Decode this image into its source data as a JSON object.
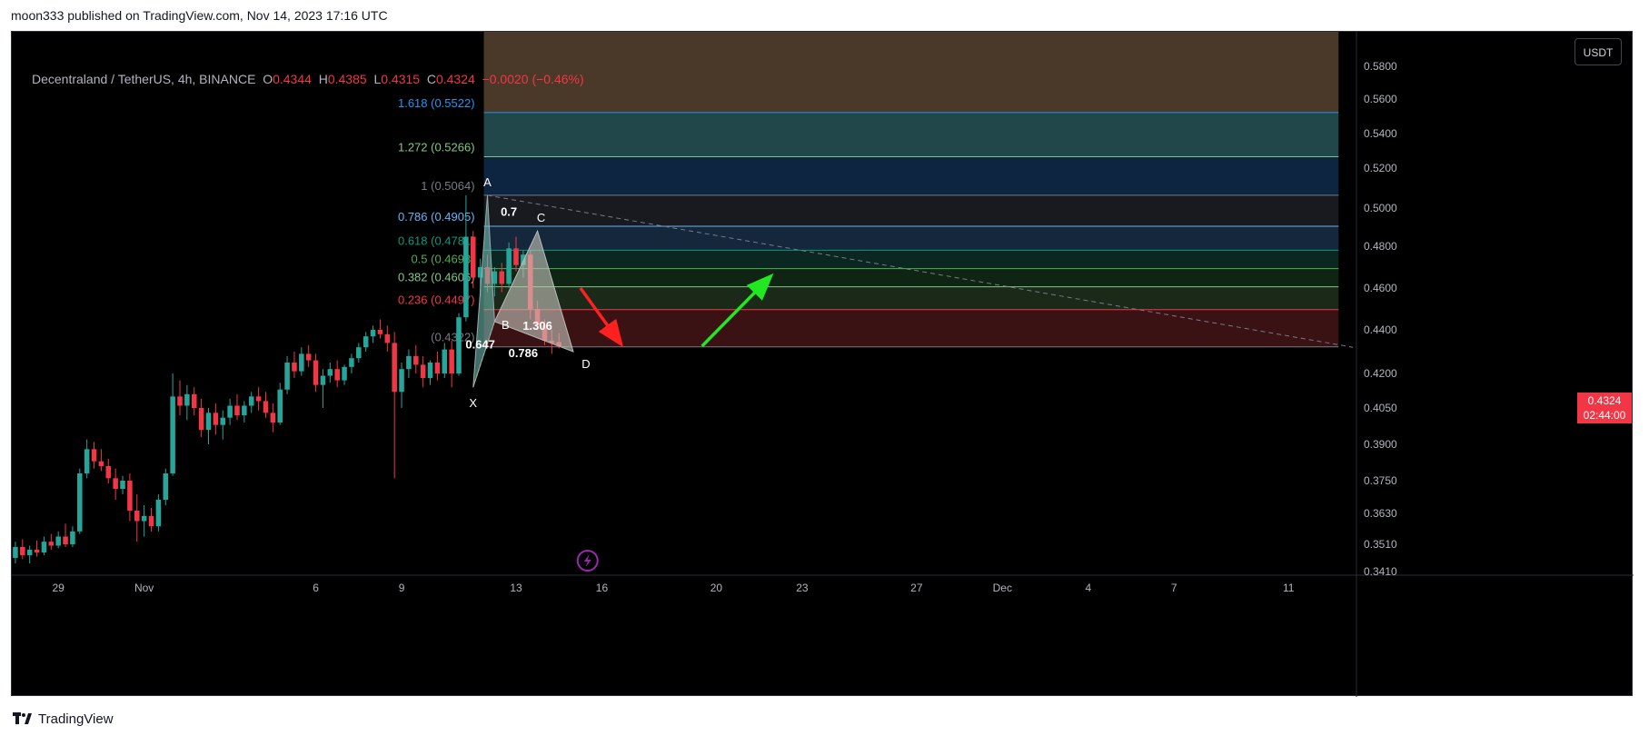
{
  "header": {
    "published": "moon333 published on TradingView.com, Nov 14, 2023 17:16 UTC"
  },
  "legend": {
    "symbol": "Decentraland / TetherUS, 4h, BINANCE",
    "o_label": "O",
    "o": "0.4344",
    "h_label": "H",
    "h": "0.4385",
    "l_label": "L",
    "l": "0.4315",
    "c_label": "C",
    "c": "0.4324",
    "change": "−0.0020 (−0.46%)"
  },
  "currency_button": "USDT",
  "last_price": {
    "value": "0.4324",
    "countdown": "02:44:00"
  },
  "footer": {
    "brand": "TradingView"
  },
  "colors": {
    "up": "#26a69a",
    "down": "#f23645",
    "background": "#000000",
    "axis_text": "#b2b5be"
  },
  "chart_data": {
    "type": "candlestick",
    "title": "",
    "xlabel": "",
    "ylabel": "",
    "y_axis_ticks": [
      "0.5800",
      "0.5600",
      "0.5400",
      "0.5200",
      "0.5000",
      "0.4800",
      "0.4600",
      "0.4400",
      "0.4200",
      "0.4050",
      "0.3900",
      "0.3750",
      "0.3630",
      "0.3510",
      "0.3410"
    ],
    "y_axis_values": [
      0.58,
      0.56,
      0.54,
      0.52,
      0.5,
      0.48,
      0.46,
      0.44,
      0.42,
      0.405,
      0.39,
      0.375,
      0.363,
      0.351,
      0.341
    ],
    "x_axis_ticks": [
      {
        "label": "29",
        "bar": 6
      },
      {
        "label": "Nov",
        "bar": 18
      },
      {
        "label": "6",
        "bar": 42
      },
      {
        "label": "9",
        "bar": 54
      },
      {
        "label": "13",
        "bar": 70
      },
      {
        "label": "16",
        "bar": 82
      },
      {
        "label": "20",
        "bar": 98
      },
      {
        "label": "23",
        "bar": 110
      },
      {
        "label": "27",
        "bar": 126
      },
      {
        "label": "Dec",
        "bar": 138
      },
      {
        "label": "4",
        "bar": 150
      },
      {
        "label": "7",
        "bar": 162
      },
      {
        "label": "11",
        "bar": 178
      }
    ],
    "bars_total": 188,
    "candles": [
      {
        "o": 0.346,
        "h": 0.352,
        "l": 0.344,
        "c": 0.35
      },
      {
        "o": 0.35,
        "h": 0.353,
        "l": 0.3455,
        "c": 0.347
      },
      {
        "o": 0.347,
        "h": 0.3505,
        "l": 0.344,
        "c": 0.349
      },
      {
        "o": 0.349,
        "h": 0.3525,
        "l": 0.3465,
        "c": 0.348
      },
      {
        "o": 0.348,
        "h": 0.354,
        "l": 0.347,
        "c": 0.352
      },
      {
        "o": 0.352,
        "h": 0.355,
        "l": 0.349,
        "c": 0.3505
      },
      {
        "o": 0.3505,
        "h": 0.356,
        "l": 0.3495,
        "c": 0.354
      },
      {
        "o": 0.354,
        "h": 0.359,
        "l": 0.35,
        "c": 0.351
      },
      {
        "o": 0.351,
        "h": 0.358,
        "l": 0.35,
        "c": 0.356
      },
      {
        "o": 0.356,
        "h": 0.38,
        "l": 0.355,
        "c": 0.378
      },
      {
        "o": 0.378,
        "h": 0.392,
        "l": 0.376,
        "c": 0.388
      },
      {
        "o": 0.388,
        "h": 0.391,
        "l": 0.38,
        "c": 0.383
      },
      {
        "o": 0.383,
        "h": 0.388,
        "l": 0.379,
        "c": 0.381
      },
      {
        "o": 0.381,
        "h": 0.384,
        "l": 0.374,
        "c": 0.376
      },
      {
        "o": 0.376,
        "h": 0.38,
        "l": 0.368,
        "c": 0.372
      },
      {
        "o": 0.372,
        "h": 0.377,
        "l": 0.37,
        "c": 0.375
      },
      {
        "o": 0.375,
        "h": 0.378,
        "l": 0.36,
        "c": 0.364
      },
      {
        "o": 0.364,
        "h": 0.37,
        "l": 0.352,
        "c": 0.36
      },
      {
        "o": 0.36,
        "h": 0.366,
        "l": 0.354,
        "c": 0.362
      },
      {
        "o": 0.362,
        "h": 0.365,
        "l": 0.356,
        "c": 0.358
      },
      {
        "o": 0.358,
        "h": 0.37,
        "l": 0.356,
        "c": 0.368
      },
      {
        "o": 0.368,
        "h": 0.38,
        "l": 0.366,
        "c": 0.378
      },
      {
        "o": 0.378,
        "h": 0.42,
        "l": 0.377,
        "c": 0.41
      },
      {
        "o": 0.41,
        "h": 0.417,
        "l": 0.402,
        "c": 0.406
      },
      {
        "o": 0.406,
        "h": 0.415,
        "l": 0.4,
        "c": 0.411
      },
      {
        "o": 0.411,
        "h": 0.414,
        "l": 0.402,
        "c": 0.405
      },
      {
        "o": 0.405,
        "h": 0.409,
        "l": 0.393,
        "c": 0.396
      },
      {
        "o": 0.396,
        "h": 0.405,
        "l": 0.39,
        "c": 0.403
      },
      {
        "o": 0.403,
        "h": 0.407,
        "l": 0.394,
        "c": 0.398
      },
      {
        "o": 0.398,
        "h": 0.404,
        "l": 0.392,
        "c": 0.401
      },
      {
        "o": 0.401,
        "h": 0.409,
        "l": 0.398,
        "c": 0.406
      },
      {
        "o": 0.406,
        "h": 0.411,
        "l": 0.4,
        "c": 0.402
      },
      {
        "o": 0.402,
        "h": 0.408,
        "l": 0.399,
        "c": 0.406
      },
      {
        "o": 0.406,
        "h": 0.412,
        "l": 0.403,
        "c": 0.41
      },
      {
        "o": 0.41,
        "h": 0.414,
        "l": 0.404,
        "c": 0.408
      },
      {
        "o": 0.408,
        "h": 0.412,
        "l": 0.401,
        "c": 0.403
      },
      {
        "o": 0.403,
        "h": 0.407,
        "l": 0.395,
        "c": 0.399
      },
      {
        "o": 0.399,
        "h": 0.416,
        "l": 0.398,
        "c": 0.413
      },
      {
        "o": 0.413,
        "h": 0.428,
        "l": 0.411,
        "c": 0.425
      },
      {
        "o": 0.425,
        "h": 0.43,
        "l": 0.418,
        "c": 0.421
      },
      {
        "o": 0.421,
        "h": 0.432,
        "l": 0.419,
        "c": 0.429
      },
      {
        "o": 0.429,
        "h": 0.433,
        "l": 0.423,
        "c": 0.426
      },
      {
        "o": 0.426,
        "h": 0.429,
        "l": 0.412,
        "c": 0.415
      },
      {
        "o": 0.415,
        "h": 0.422,
        "l": 0.405,
        "c": 0.419
      },
      {
        "o": 0.419,
        "h": 0.425,
        "l": 0.416,
        "c": 0.422
      },
      {
        "o": 0.422,
        "h": 0.426,
        "l": 0.414,
        "c": 0.417
      },
      {
        "o": 0.417,
        "h": 0.424,
        "l": 0.415,
        "c": 0.423
      },
      {
        "o": 0.423,
        "h": 0.429,
        "l": 0.42,
        "c": 0.427
      },
      {
        "o": 0.427,
        "h": 0.434,
        "l": 0.425,
        "c": 0.432
      },
      {
        "o": 0.432,
        "h": 0.439,
        "l": 0.43,
        "c": 0.437
      },
      {
        "o": 0.437,
        "h": 0.442,
        "l": 0.434,
        "c": 0.44
      },
      {
        "o": 0.44,
        "h": 0.445,
        "l": 0.436,
        "c": 0.438
      },
      {
        "o": 0.438,
        "h": 0.442,
        "l": 0.43,
        "c": 0.434
      },
      {
        "o": 0.434,
        "h": 0.439,
        "l": 0.376,
        "c": 0.412
      },
      {
        "o": 0.412,
        "h": 0.425,
        "l": 0.405,
        "c": 0.422
      },
      {
        "o": 0.422,
        "h": 0.431,
        "l": 0.418,
        "c": 0.428
      },
      {
        "o": 0.428,
        "h": 0.433,
        "l": 0.42,
        "c": 0.424
      },
      {
        "o": 0.424,
        "h": 0.428,
        "l": 0.414,
        "c": 0.418
      },
      {
        "o": 0.418,
        "h": 0.426,
        "l": 0.415,
        "c": 0.425
      },
      {
        "o": 0.425,
        "h": 0.43,
        "l": 0.417,
        "c": 0.42
      },
      {
        "o": 0.42,
        "h": 0.434,
        "l": 0.418,
        "c": 0.431
      },
      {
        "o": 0.431,
        "h": 0.435,
        "l": 0.414,
        "c": 0.42
      },
      {
        "o": 0.42,
        "h": 0.448,
        "l": 0.419,
        "c": 0.446
      },
      {
        "o": 0.446,
        "h": 0.5064,
        "l": 0.444,
        "c": 0.485
      },
      {
        "o": 0.485,
        "h": 0.488,
        "l": 0.46,
        "c": 0.465
      },
      {
        "o": 0.465,
        "h": 0.474,
        "l": 0.456,
        "c": 0.47
      },
      {
        "o": 0.47,
        "h": 0.476,
        "l": 0.458,
        "c": 0.462
      },
      {
        "o": 0.462,
        "h": 0.47,
        "l": 0.456,
        "c": 0.468
      },
      {
        "o": 0.468,
        "h": 0.472,
        "l": 0.458,
        "c": 0.462
      },
      {
        "o": 0.462,
        "h": 0.482,
        "l": 0.46,
        "c": 0.479
      },
      {
        "o": 0.479,
        "h": 0.485,
        "l": 0.468,
        "c": 0.471
      },
      {
        "o": 0.471,
        "h": 0.478,
        "l": 0.465,
        "c": 0.476
      },
      {
        "o": 0.476,
        "h": 0.478,
        "l": 0.445,
        "c": 0.45
      },
      {
        "o": 0.45,
        "h": 0.454,
        "l": 0.44,
        "c": 0.442
      },
      {
        "o": 0.442,
        "h": 0.445,
        "l": 0.433,
        "c": 0.435
      },
      {
        "o": 0.435,
        "h": 0.44,
        "l": 0.429,
        "c": 0.434
      },
      {
        "o": 0.4344,
        "h": 0.4385,
        "l": 0.4315,
        "c": 0.4324
      }
    ],
    "fib_levels": [
      {
        "ratio": "1.618",
        "value": 0.5522,
        "label": "1.618 (0.5522)",
        "color": "#2196f3",
        "fill": "#22474b"
      },
      {
        "ratio": "1.272",
        "value": 0.5266,
        "label": "1.272 (0.5266)",
        "color": "#81c784",
        "fill": "#0d2540"
      },
      {
        "ratio": "1",
        "value": 0.5064,
        "label": "1 (0.5064)",
        "color": "#787b86",
        "fill": "#181a1f"
      },
      {
        "ratio": "0.786",
        "value": 0.4905,
        "label": "0.786 (0.4905)",
        "color": "#64b5f6",
        "fill": "#15273a"
      },
      {
        "ratio": "0.618",
        "value": 0.4781,
        "label": "0.618 (0.4781)",
        "color": "#089981",
        "fill": "#0a2722"
      },
      {
        "ratio": "0.5",
        "value": 0.4693,
        "label": "0.5 (0.4693)",
        "color": "#4caf50",
        "fill": "#0f2412"
      },
      {
        "ratio": "0.382",
        "value": 0.4606,
        "label": "0.382 (0.4606)",
        "color": "#81c784",
        "fill": "#1b2918"
      },
      {
        "ratio": "0.236",
        "value": 0.4497,
        "label": "0.236 (0.4497)",
        "color": "#f23645",
        "fill": "#3a1214"
      },
      {
        "ratio": "0",
        "value": 0.4322,
        "label": "(0.4322)",
        "color": "#787b86",
        "fill": ""
      }
    ],
    "fib_top_fill": "#4a3828",
    "fib_range_start_bar": 66,
    "fib_range_end_bar": 185,
    "harmonic_pattern": {
      "points": [
        {
          "label": "X",
          "bar": 64,
          "price": 0.414
        },
        {
          "label": "A",
          "bar": 66,
          "price": 0.5064
        },
        {
          "label": "B",
          "bar": 67,
          "price": 0.444
        },
        {
          "label": "C",
          "bar": 73,
          "price": 0.488
        },
        {
          "label": "D",
          "bar": 78,
          "price": 0.43
        }
      ],
      "ratios": [
        {
          "label": "0.647",
          "bar": 65,
          "price": 0.4315
        },
        {
          "label": "0.7",
          "bar": 69,
          "price": 0.496
        },
        {
          "label": "1.306",
          "bar": 73,
          "price": 0.44
        },
        {
          "label": "0.786",
          "bar": 71,
          "price": 0.4275
        }
      ]
    },
    "trend_line": {
      "bar1": 66,
      "price1": 0.5064,
      "bar2": 187,
      "price2": 0.432
    },
    "arrows": [
      {
        "direction": "down",
        "color": "#ff2020",
        "from_bar": 79,
        "from_price": 0.46,
        "to_bar": 85,
        "to_price": 0.432
      },
      {
        "direction": "up",
        "color": "#22e822",
        "from_bar": 96,
        "from_price": 0.4325,
        "to_bar": 106,
        "to_price": 0.467
      }
    ]
  }
}
